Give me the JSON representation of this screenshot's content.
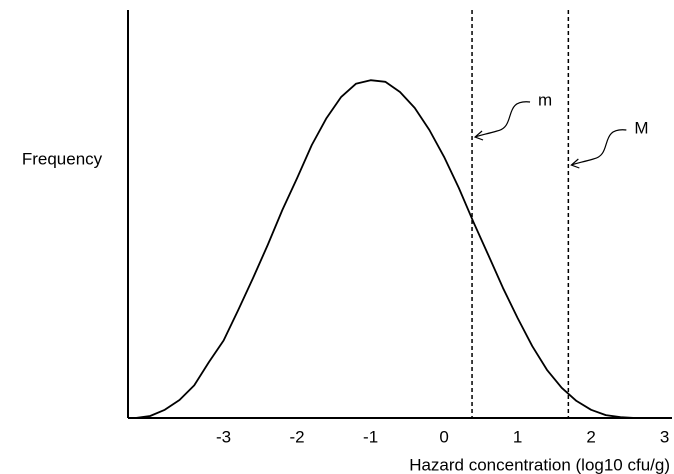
{
  "chart_data": {
    "type": "line",
    "x_label": "Hazard concentration (log10 cfu/g)",
    "y_label": "Frequency",
    "x": [
      -4.2,
      -4.0,
      -3.8,
      -3.6,
      -3.4,
      -3.2,
      -3.0,
      -2.8,
      -2.6,
      -2.4,
      -2.2,
      -2.0,
      -1.8,
      -1.6,
      -1.4,
      -1.2,
      -1.0,
      -0.8,
      -0.6,
      -0.4,
      -0.2,
      0,
      0.2,
      0.4,
      0.6,
      0.8,
      1.0,
      1.2,
      1.4,
      1.6,
      1.8,
      2.0,
      2.2,
      2.4,
      2.6
    ],
    "values": [
      0,
      0.005,
      0.02,
      0.044,
      0.08,
      0.137,
      0.19,
      0.265,
      0.343,
      0.424,
      0.51,
      0.588,
      0.669,
      0.735,
      0.787,
      0.819,
      0.828,
      0.824,
      0.799,
      0.76,
      0.706,
      0.64,
      0.564,
      0.48,
      0.4,
      0.319,
      0.245,
      0.176,
      0.118,
      0.074,
      0.042,
      0.02,
      0.007,
      0.002,
      0
    ],
    "color": "#000000",
    "xlim": [
      -4.3,
      3.1
    ],
    "ylim": [
      0,
      1
    ],
    "xticks": [
      -3,
      -2,
      -1,
      0,
      1,
      2,
      3
    ],
    "annotations": [
      {
        "label": "m",
        "x": 0.38
      },
      {
        "label": "M",
        "x": 1.69
      }
    ]
  }
}
